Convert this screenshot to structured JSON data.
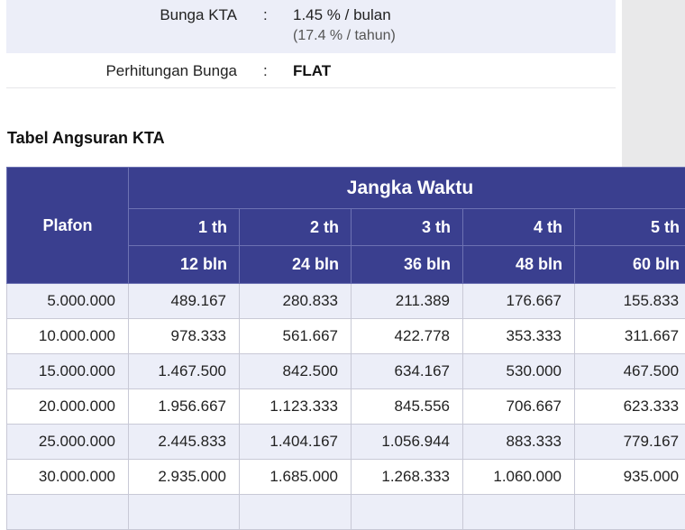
{
  "info": {
    "bunga_label": "Bunga KTA",
    "colon": ":",
    "bunga_value": "1.45 % / bulan",
    "bunga_sub": "(17.4 % / tahun)",
    "perhitungan_label": "Perhitungan Bunga",
    "perhitungan_value": "FLAT"
  },
  "section_title": "Tabel Angsuran KTA",
  "table": {
    "plafon_header": "Plafon",
    "jangka_header": "Jangka Waktu",
    "years": [
      "1 th",
      "2 th",
      "3 th",
      "4 th",
      "5 th"
    ],
    "months": [
      "12 bln",
      "24 bln",
      "36 bln",
      "48 bln",
      "60 bln"
    ],
    "rows": [
      {
        "plafon": "5.000.000",
        "values": [
          "489.167",
          "280.833",
          "211.389",
          "176.667",
          "155.833"
        ]
      },
      {
        "plafon": "10.000.000",
        "values": [
          "978.333",
          "561.667",
          "422.778",
          "353.333",
          "311.667"
        ]
      },
      {
        "plafon": "15.000.000",
        "values": [
          "1.467.500",
          "842.500",
          "634.167",
          "530.000",
          "467.500"
        ]
      },
      {
        "plafon": "20.000.000",
        "values": [
          "1.956.667",
          "1.123.333",
          "845.556",
          "706.667",
          "623.333"
        ]
      },
      {
        "plafon": "25.000.000",
        "values": [
          "2.445.833",
          "1.404.167",
          "1.056.944",
          "883.333",
          "779.167"
        ]
      },
      {
        "plafon": "30.000.000",
        "values": [
          "2.935.000",
          "1.685.000",
          "1.268.333",
          "1.060.000",
          "935.000"
        ]
      },
      {
        "plafon": "",
        "values": [
          "",
          "",
          "",
          "",
          ""
        ]
      }
    ]
  }
}
